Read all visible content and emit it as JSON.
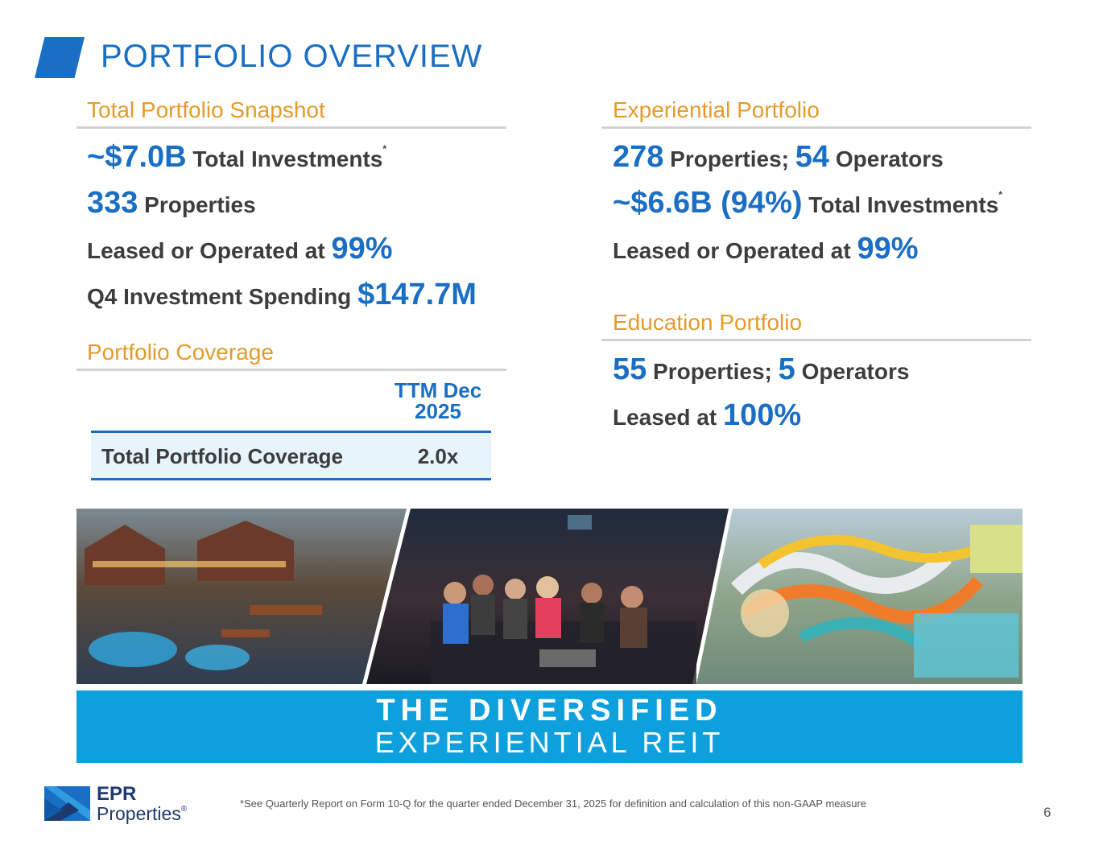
{
  "title": "PORTFOLIO OVERVIEW",
  "total_snapshot": {
    "heading": "Total Portfolio Snapshot",
    "investments": {
      "value": "~$7.0B",
      "label": " Total Investments",
      "mark": "*"
    },
    "properties": {
      "value": "333",
      "label": " Properties"
    },
    "leased": {
      "label": "Leased or Operated at ",
      "value": "99%"
    },
    "spending": {
      "label": "Q4 Investment Spending ",
      "value": "$147.7M"
    }
  },
  "coverage": {
    "heading": "Portfolio Coverage",
    "column_header": "TTM Dec 2025",
    "row_label": "Total Portfolio Coverage",
    "row_value": "2.0x"
  },
  "experiential": {
    "heading": "Experiential Portfolio",
    "properties_value": "278",
    "properties_label": " Properties; ",
    "operators_value": "54",
    "operators_label": " Operators",
    "investments_value": "~$6.6B (94%)",
    "investments_label": " Total Investments",
    "investments_mark": "*",
    "leased_label": "Leased or Operated at ",
    "leased_value": "99%"
  },
  "education": {
    "heading": "Education Portfolio",
    "properties_value": "55",
    "properties_label": " Properties; ",
    "operators_value": "5",
    "operators_label": " Operators",
    "leased_label": "Leased at ",
    "leased_value": "100%"
  },
  "banner": {
    "line1": "THE DIVERSIFIED",
    "line2": "EXPERIENTIAL REIT"
  },
  "logo": {
    "line1": "EPR",
    "line2": "Properties",
    "mark": "®"
  },
  "footnote": "*See Quarterly Report on Form 10-Q for the quarter ended December 31, 2025 for definition and calculation of this non-GAAP measure",
  "page_number": "6",
  "colors": {
    "blue": "#1a6fc4",
    "orange": "#e49b2a",
    "banner": "#0ea0dc"
  }
}
